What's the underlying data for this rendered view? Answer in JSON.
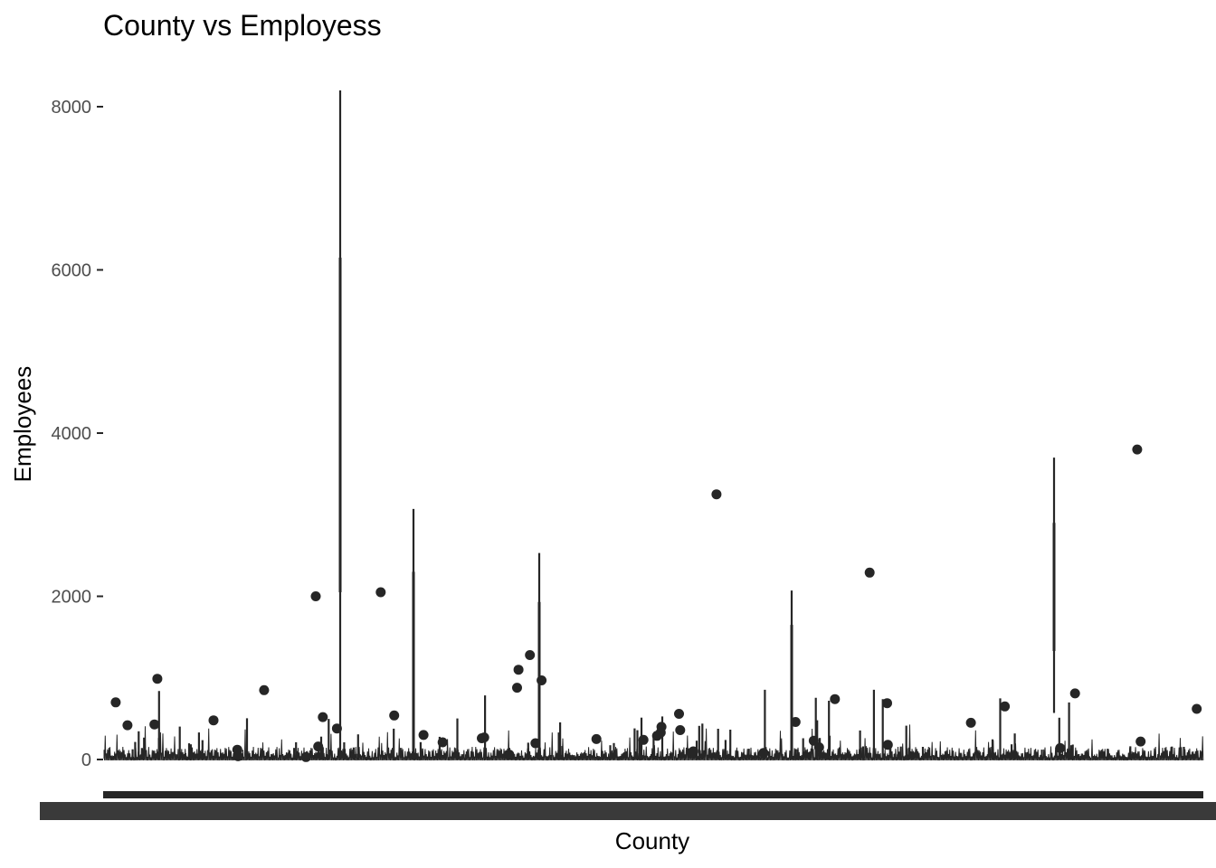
{
  "chart_data": {
    "type": "box",
    "title": "County vs Employess",
    "xlabel": "County",
    "ylabel": "Employees",
    "ylim": [
      0,
      8200
    ],
    "yticks": [
      0,
      2000,
      4000,
      6000,
      8000
    ],
    "grid": false,
    "legend": "none",
    "colors": {
      "mark": "#262626",
      "tick_label": "#4d4d4d",
      "x_tick_block": "#3a3a3a"
    },
    "x_tick_labels_legible": false,
    "notable_boxes": [
      {
        "whisker_top": 8200,
        "q3": 6150,
        "q1": 2050
      },
      {
        "whisker_top": 3070,
        "q3": 2300
      },
      {
        "whisker_top": 2530,
        "q3": 1930
      },
      {
        "whisker_top": 2070,
        "q3": 1650
      },
      {
        "whisker_top": 3700,
        "q3": 2900,
        "q1": 1330,
        "whisker_bottom": 570
      }
    ],
    "outliers": [
      3800,
      3250,
      2290,
      2050,
      2000,
      1280,
      1100,
      990,
      970,
      880,
      850,
      810,
      740,
      700,
      690,
      650,
      620,
      560,
      540,
      520,
      480,
      460,
      450,
      430,
      420,
      400,
      380,
      360,
      330,
      300,
      290,
      270,
      260,
      250,
      240,
      230,
      220,
      210,
      200,
      180,
      160,
      150,
      140,
      120,
      100,
      80,
      60,
      40,
      30
    ]
  }
}
